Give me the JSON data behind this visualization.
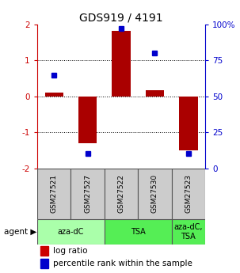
{
  "title": "GDS919 / 4191",
  "samples": [
    "GSM27521",
    "GSM27527",
    "GSM27522",
    "GSM27530",
    "GSM27523"
  ],
  "log_ratios": [
    0.1,
    -1.3,
    1.82,
    0.18,
    -1.5
  ],
  "percentile_ranks": [
    65,
    10,
    97,
    80,
    10
  ],
  "ylim": [
    -2,
    2
  ],
  "ylim_right": [
    0,
    100
  ],
  "yticks_left": [
    -2,
    -1,
    0,
    1,
    2
  ],
  "yticks_right": [
    0,
    25,
    50,
    75,
    100
  ],
  "ytick_labels_right": [
    "0",
    "25",
    "50",
    "75",
    "100%"
  ],
  "bar_color": "#aa0000",
  "dot_color": "#0000cc",
  "agent_groups": [
    {
      "label": "aza-dC",
      "span": [
        0,
        2
      ],
      "color": "#aaffaa"
    },
    {
      "label": "TSA",
      "span": [
        2,
        4
      ],
      "color": "#55ee55"
    },
    {
      "label": "aza-dC,\nTSA",
      "span": [
        4,
        5
      ],
      "color": "#55ee55"
    }
  ],
  "legend_bar_color": "#cc0000",
  "legend_dot_color": "#0000cc",
  "legend_log_ratio": "log ratio",
  "legend_percentile": "percentile rank within the sample",
  "background_color": "#ffffff"
}
